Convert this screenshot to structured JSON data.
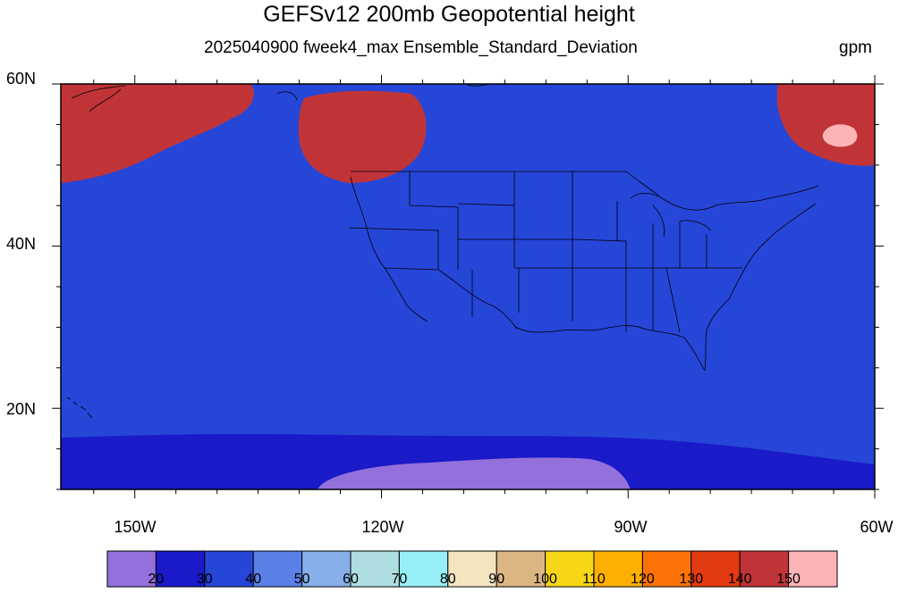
{
  "title": "GEFSv12 200mb Geopotential height",
  "subtitle": "2025040900 fweek4_max Ensemble_Standard_Deviation",
  "units": "gpm",
  "axes": {
    "lat_labels": [
      "60N",
      "40N",
      "20N"
    ],
    "lon_labels": [
      "150W",
      "120W",
      "90W",
      "60W"
    ]
  },
  "colorbar": {
    "colors": [
      "#9370db",
      "#1a1ac8",
      "#2646d8",
      "#5a7fe6",
      "#87b0ea",
      "#aedde2",
      "#97eef6",
      "#f4e4c0",
      "#dcb682",
      "#f7d617",
      "#fdb002",
      "#fb7306",
      "#e23a12",
      "#c03438",
      "#fdb4b8"
    ],
    "labels": [
      "20",
      "30",
      "40",
      "50",
      "60",
      "70",
      "80",
      "90",
      "100",
      "110",
      "120",
      "130",
      "140",
      "150"
    ]
  },
  "map": {
    "projection": "cylindrical equidistant",
    "lon_range": [
      -159,
      -60
    ],
    "lat_range": [
      10,
      60
    ],
    "field": "200mb geopotential height ensemble standard deviation (gpm)",
    "overlays": [
      "coastlines",
      "US state boundaries",
      "national boundaries"
    ]
  }
}
